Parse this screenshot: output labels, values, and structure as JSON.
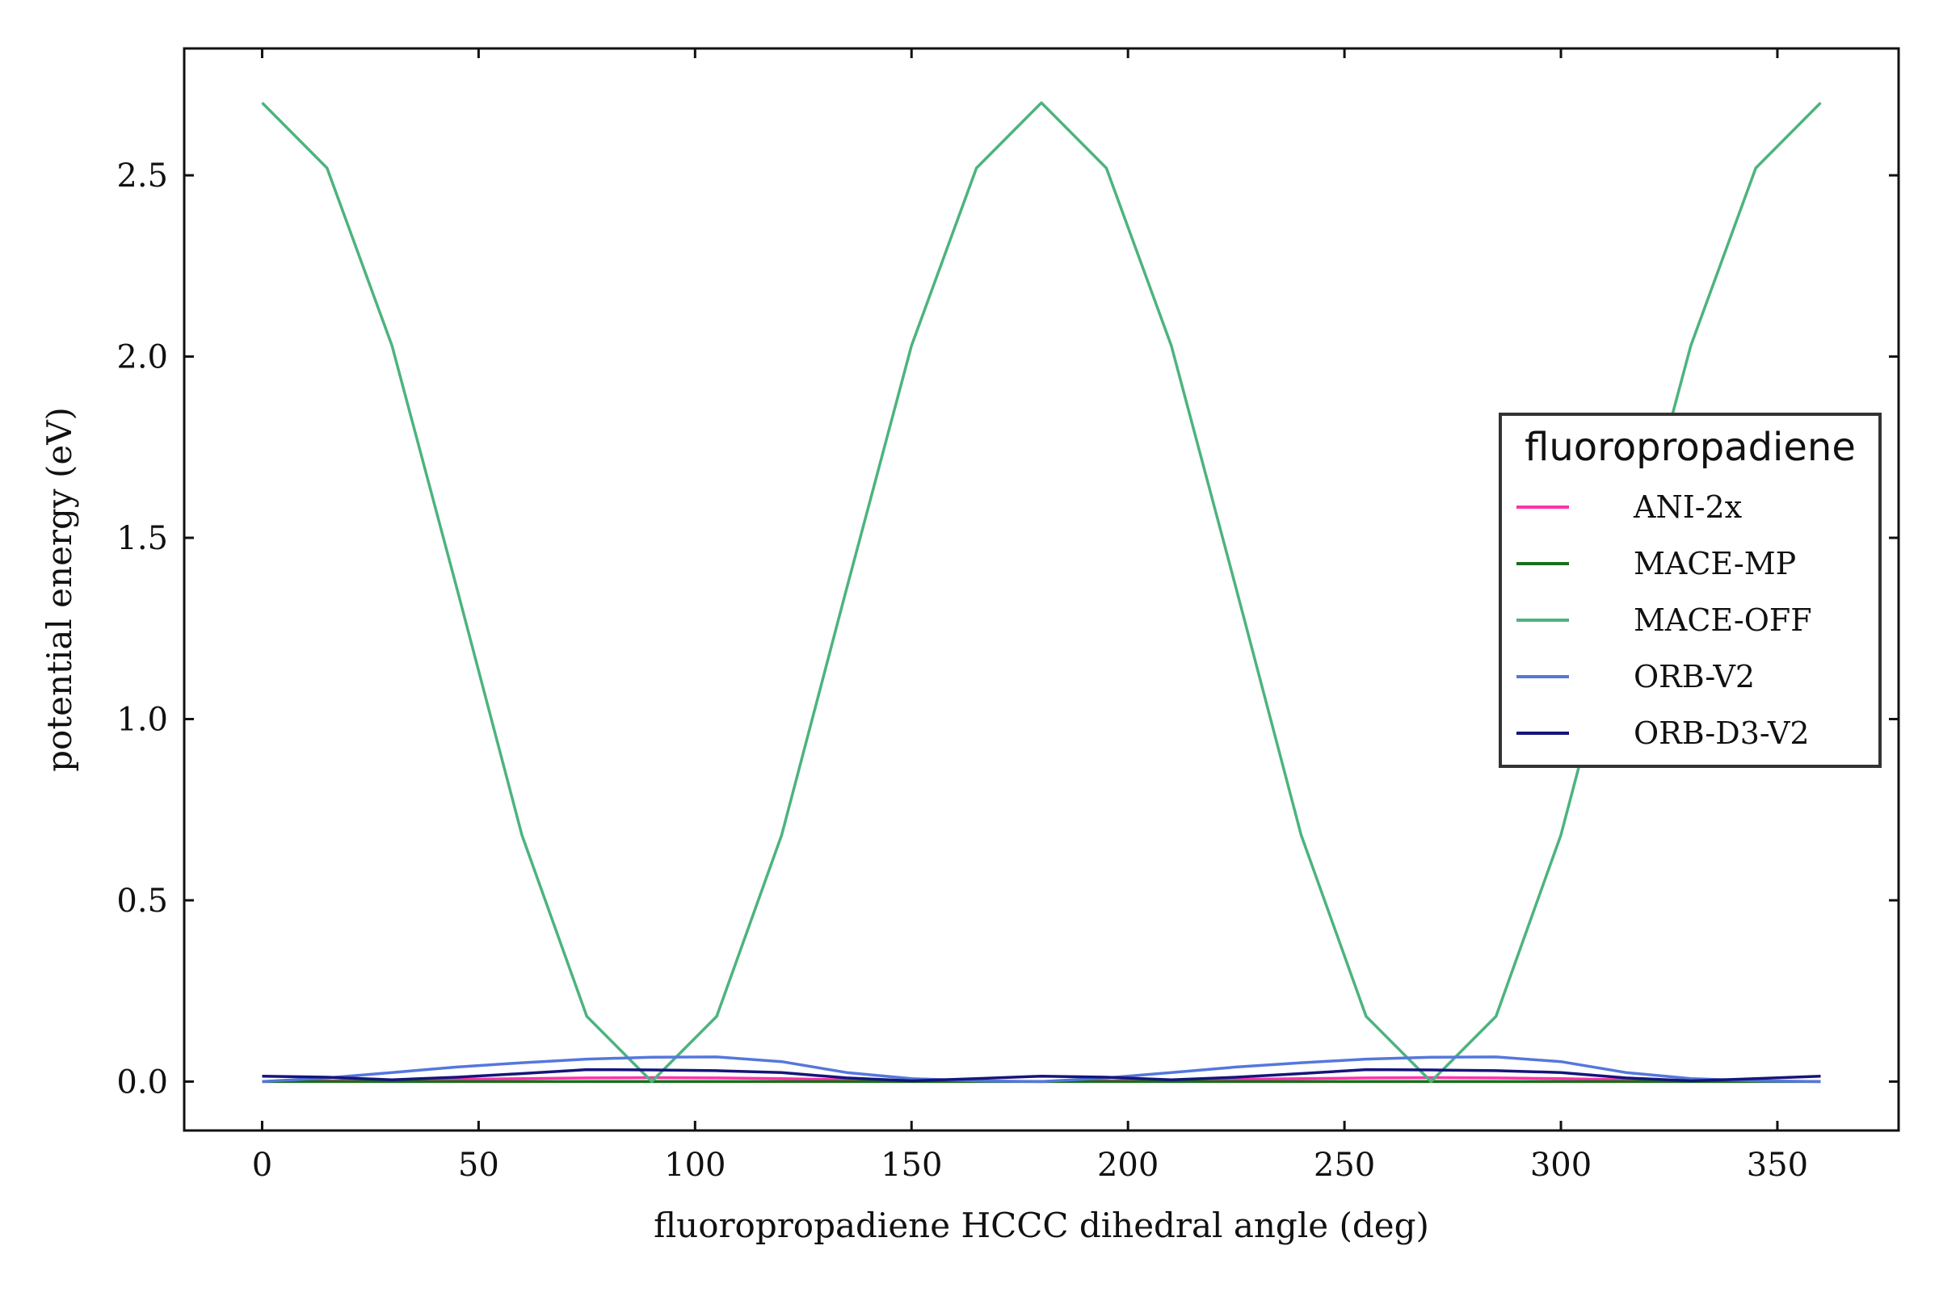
{
  "chart_data": {
    "type": "line",
    "title": "",
    "xlabel": "fluoropropadiene HCCC dihedral angle (deg)",
    "ylabel": "potential energy (eV)",
    "xlim": [
      -18,
      378
    ],
    "ylim": [
      -0.135,
      2.85
    ],
    "xticks": [
      0,
      50,
      100,
      150,
      200,
      250,
      300,
      350
    ],
    "yticks": [
      0.0,
      0.5,
      1.0,
      1.5,
      2.0,
      2.5
    ],
    "xtick_labels": [
      "0",
      "50",
      "100",
      "150",
      "200",
      "250",
      "300",
      "350"
    ],
    "ytick_labels": [
      "0.0",
      "0.5",
      "1.0",
      "1.5",
      "2.0",
      "2.5"
    ],
    "grid": false,
    "legend": {
      "title": "fluoropropadiene",
      "position": "center-right"
    },
    "x": [
      0,
      15,
      30,
      45,
      60,
      75,
      90,
      105,
      120,
      135,
      150,
      165,
      180,
      195,
      210,
      225,
      240,
      255,
      270,
      285,
      300,
      315,
      330,
      345,
      360
    ],
    "series": [
      {
        "name": "ANI-2x",
        "color": "#ff33aa",
        "values": [
          0.0,
          0.002,
          0.004,
          0.006,
          0.008,
          0.01,
          0.011,
          0.01,
          0.008,
          0.005,
          0.002,
          0.001,
          0.0,
          0.002,
          0.004,
          0.006,
          0.008,
          0.01,
          0.011,
          0.01,
          0.008,
          0.005,
          0.002,
          0.001,
          0.0
        ]
      },
      {
        "name": "MACE-MP",
        "color": "#1a6e1a",
        "values": [
          0.0,
          0.0,
          0.0,
          0.0,
          0.0,
          0.0,
          0.0,
          0.0,
          0.0,
          0.0,
          0.0,
          0.0,
          0.0,
          0.0,
          0.0,
          0.0,
          0.0,
          0.0,
          0.0,
          0.0,
          0.0,
          0.0,
          0.0,
          0.0,
          0.0
        ]
      },
      {
        "name": "MACE-OFF",
        "color": "#4db37e",
        "values": [
          2.7,
          2.52,
          2.03,
          1.36,
          0.68,
          0.18,
          0.0,
          0.18,
          0.68,
          1.36,
          2.03,
          2.52,
          2.7,
          2.52,
          2.03,
          1.36,
          0.68,
          0.18,
          0.0,
          0.18,
          0.68,
          1.36,
          2.03,
          2.52,
          2.7
        ]
      },
      {
        "name": "ORB-V2",
        "color": "#5577dd",
        "values": [
          0.0,
          0.01,
          0.025,
          0.04,
          0.052,
          0.062,
          0.067,
          0.068,
          0.055,
          0.025,
          0.008,
          0.002,
          0.0,
          0.01,
          0.025,
          0.04,
          0.052,
          0.062,
          0.067,
          0.068,
          0.055,
          0.025,
          0.008,
          0.002,
          0.0
        ]
      },
      {
        "name": "ORB-D3-V2",
        "color": "#15157a",
        "values": [
          0.015,
          0.012,
          0.005,
          0.012,
          0.022,
          0.033,
          0.032,
          0.03,
          0.025,
          0.01,
          0.002,
          0.008,
          0.015,
          0.012,
          0.005,
          0.012,
          0.022,
          0.033,
          0.032,
          0.03,
          0.025,
          0.01,
          0.002,
          0.008,
          0.015
        ]
      }
    ]
  }
}
